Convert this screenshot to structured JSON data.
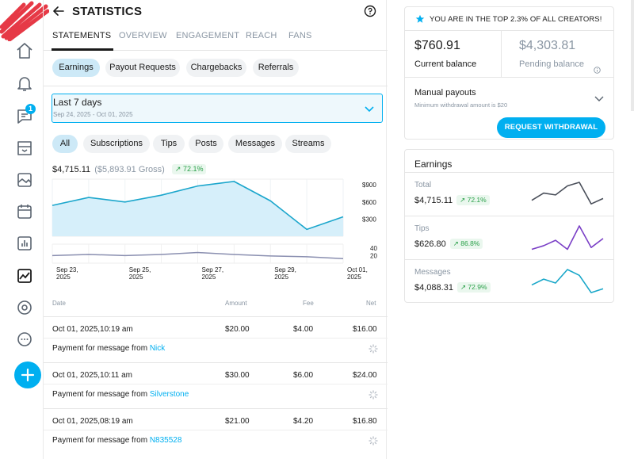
{
  "nav": {
    "icons": [
      "home-icon",
      "bell-icon",
      "messages-icon",
      "collections-icon",
      "vault-icon",
      "calendar-icon",
      "statistics-icon",
      "analytics-icon",
      "profile-icon",
      "more-icon"
    ],
    "messages_badge": "1",
    "new_post_icon": "plus-icon"
  },
  "header": {
    "title": "STATISTICS"
  },
  "tabs": [
    {
      "label": "STATEMENTS",
      "active": true
    },
    {
      "label": "OVERVIEW",
      "active": false
    },
    {
      "label": "ENGAGEMENT",
      "active": false
    },
    {
      "label": "REACH",
      "active": false
    },
    {
      "label": "FANS",
      "active": false
    }
  ],
  "sub_tabs": [
    {
      "label": "Earnings",
      "selected": true
    },
    {
      "label": "Payout Requests",
      "selected": false
    },
    {
      "label": "Chargebacks",
      "selected": false
    },
    {
      "label": "Referrals",
      "selected": false
    }
  ],
  "period": {
    "label": "Last 7 days",
    "range": "Sep 24, 2025 - Oct 01, 2025"
  },
  "filters": [
    {
      "label": "All",
      "selected": true
    },
    {
      "label": "Subscriptions",
      "selected": false
    },
    {
      "label": "Tips",
      "selected": false
    },
    {
      "label": "Posts",
      "selected": false
    },
    {
      "label": "Messages",
      "selected": false
    },
    {
      "label": "Streams",
      "selected": false
    }
  ],
  "summary": {
    "net": "$4,715.11",
    "gross": "($5,893.91 Gross)",
    "change": "↗ 72.1%"
  },
  "chart_data": {
    "type": "line",
    "x": [
      "Sep 23, 2025",
      "Sep 24, 2025",
      "Sep 25, 2025",
      "Sep 26, 2025",
      "Sep 27, 2025",
      "Sep 28, 2025",
      "Sep 29, 2025",
      "Sep 30, 2025",
      "Oct 01, 2025"
    ],
    "x_tick_labels": [
      {
        "line1": "Sep 23,",
        "line2": "2025"
      },
      {
        "line1": "Sep 25,",
        "line2": "2025"
      },
      {
        "line1": "Sep 27,",
        "line2": "2025"
      },
      {
        "line1": "Sep 29,",
        "line2": "2025"
      },
      {
        "line1": "Oct 01,",
        "line2": "2025"
      }
    ],
    "series": [
      {
        "name": "",
        "values": [
          540,
          680,
          600,
          720,
          880,
          960,
          620,
          120,
          340
        ],
        "color": "#1ba6cc",
        "fill": "#d6effa"
      },
      {
        "name": "",
        "values": [
          20,
          23,
          20,
          23,
          28,
          23,
          19,
          17,
          12
        ],
        "color": "#8a8fb0"
      }
    ],
    "y_ticks_top": [
      "$900",
      "$600",
      "$300"
    ],
    "y_ticks_bottom": [
      "40",
      "20"
    ],
    "ylim_top": [
      0,
      1000
    ],
    "ylim_bottom": [
      0,
      50
    ],
    "grid": true
  },
  "table": {
    "columns": [
      "Date",
      "Amount",
      "Fee",
      "Net"
    ],
    "rows": [
      {
        "date": "Oct 01, 2025,10:19 am",
        "amount": "$20.00",
        "fee": "$4.00",
        "net": "$16.00",
        "desc": "Payment for message from",
        "user": "Nick"
      },
      {
        "date": "Oct 01, 2025,10:11 am",
        "amount": "$30.00",
        "fee": "$6.00",
        "net": "$24.00",
        "desc": "Payment for message from",
        "user": "Silverstone"
      },
      {
        "date": "Oct 01, 2025,08:19 am",
        "amount": "$21.00",
        "fee": "$4.20",
        "net": "$16.80",
        "desc": "Payment for message from",
        "user": "N835528"
      }
    ]
  },
  "right": {
    "banner": "YOU ARE IN THE TOP 2.3% OF ALL CREATORS!",
    "current_balance": "$760.91",
    "current_label": "Current balance",
    "pending_balance": "$4,303.81",
    "pending_label": "Pending balance",
    "payout_label": "Manual payouts",
    "payout_sub": "Minimum withdrawal amount is $20",
    "withdraw_button": "REQUEST WITHDRAWAL",
    "accent": "#00aff0"
  },
  "earnings": {
    "title": "Earnings",
    "items": [
      {
        "label": "Total",
        "value": "$4,715.11",
        "change": "↗ 72.1%",
        "color": "#4a4f5a",
        "spark": [
          10,
          18,
          16,
          26,
          30,
          6,
          12
        ]
      },
      {
        "label": "Tips",
        "value": "$626.80",
        "change": "↗ 86.8%",
        "color": "#7a3fc6",
        "spark": [
          4,
          8,
          14,
          4,
          30,
          6,
          16
        ]
      },
      {
        "label": "Messages",
        "value": "$4,088.31",
        "change": "↗ 72.9%",
        "color": "#19a7c9",
        "spark": [
          12,
          18,
          14,
          28,
          22,
          4,
          8
        ]
      }
    ]
  }
}
